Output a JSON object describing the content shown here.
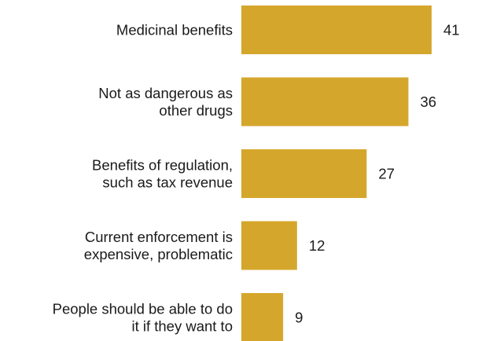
{
  "chart_data": {
    "type": "bar",
    "orientation": "horizontal",
    "categories": [
      [
        "Medicinal benefits"
      ],
      [
        "Not as dangerous as",
        "other drugs"
      ],
      [
        "Benefits of regulation,",
        "such as tax revenue"
      ],
      [
        "Current enforcement is",
        "expensive, problematic"
      ],
      [
        "People should be able to do",
        "it if they want to"
      ]
    ],
    "values": [
      41,
      36,
      27,
      12,
      9
    ],
    "xlim": [
      0,
      41
    ],
    "grid": false,
    "legend": "none",
    "bar_color": "#D4A72C"
  }
}
